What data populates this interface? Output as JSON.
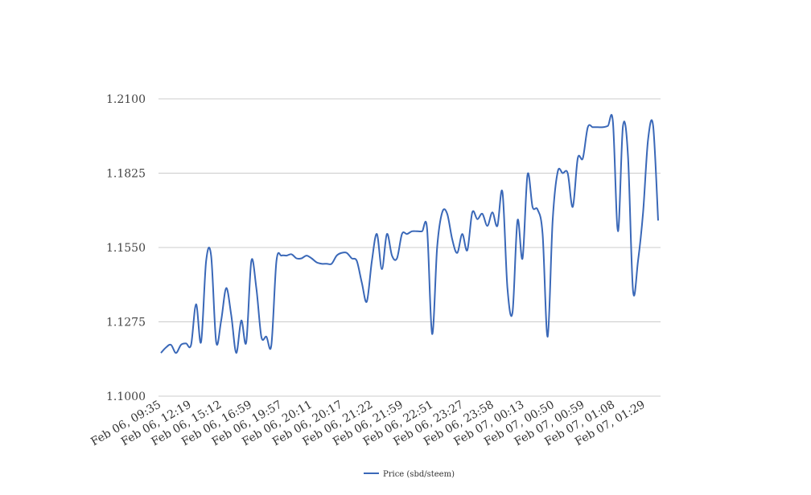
{
  "chart_data": {
    "type": "line",
    "title": "",
    "xlabel": "",
    "ylabel": "",
    "ylim": [
      1.1,
      1.21
    ],
    "yticks": [
      "1.1000",
      "1.1275",
      "1.1550",
      "1.1825",
      "1.2100"
    ],
    "xticks": [
      "Feb 06, 09:35",
      "Feb 06, 12:19",
      "Feb 06, 15:12",
      "Feb 06, 16:59",
      "Feb 06, 19:57",
      "Feb 06, 20:11",
      "Feb 06, 20:17",
      "Feb 06, 21:22",
      "Feb 06, 21:59",
      "Feb 06, 22:51",
      "Feb 06, 23:27",
      "Feb 06, 23:58",
      "Feb 07, 00:13",
      "Feb 07, 00:50",
      "Feb 07, 00:59",
      "Feb 07, 01:08",
      "Feb 07, 01:29"
    ],
    "grid": true,
    "legend_position": "bottom",
    "series": [
      {
        "name": "Price (sbd/steem)",
        "color": "#3a68b8",
        "values": [
          1.116,
          1.118,
          1.119,
          1.116,
          1.119,
          1.1195,
          1.119,
          1.134,
          1.12,
          1.15,
          1.152,
          1.12,
          1.128,
          1.14,
          1.13,
          1.116,
          1.128,
          1.12,
          1.15,
          1.14,
          1.122,
          1.122,
          1.119,
          1.15,
          1.152,
          1.152,
          1.1525,
          1.151,
          1.151,
          1.152,
          1.151,
          1.1495,
          1.149,
          1.149,
          1.149,
          1.152,
          1.153,
          1.153,
          1.151,
          1.15,
          1.142,
          1.135,
          1.15,
          1.16,
          1.147,
          1.16,
          1.152,
          1.151,
          1.16,
          1.16,
          1.161,
          1.161,
          1.161,
          1.162,
          1.123,
          1.155,
          1.168,
          1.1675,
          1.158,
          1.153,
          1.16,
          1.154,
          1.168,
          1.1655,
          1.1675,
          1.163,
          1.168,
          1.163,
          1.1755,
          1.14,
          1.131,
          1.165,
          1.151,
          1.182,
          1.17,
          1.169,
          1.16,
          1.122,
          1.165,
          1.183,
          1.1825,
          1.1825,
          1.17,
          1.188,
          1.188,
          1.1995,
          1.1995,
          1.1995,
          1.1995,
          1.2,
          1.2015,
          1.161,
          1.2,
          1.189,
          1.139,
          1.15,
          1.168,
          1.195,
          1.2,
          1.165
        ]
      }
    ]
  }
}
